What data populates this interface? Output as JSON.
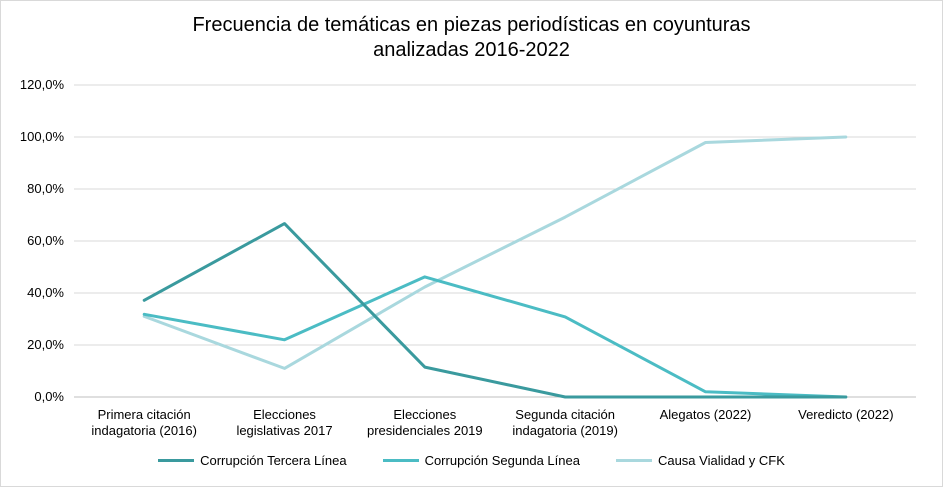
{
  "chart_data": {
    "type": "line",
    "title_lines": [
      "Frecuencia de temáticas en piezas periodísticas en coyunturas",
      "analizadas 2016-2022"
    ],
    "categories": [
      [
        "Primera citación",
        "indagatoria (2016)"
      ],
      [
        "Elecciones",
        "legislativas 2017"
      ],
      [
        "Elecciones",
        "presidenciales 2019"
      ],
      [
        "Segunda citación",
        "indagatoria (2019)"
      ],
      [
        "Alegatos (2022)"
      ],
      [
        "Veredicto (2022)"
      ]
    ],
    "y_ticks": [
      "0,0%",
      "20,0%",
      "40,0%",
      "60,0%",
      "80,0%",
      "100,0%",
      "120,0%"
    ],
    "ylim": [
      0,
      120
    ],
    "grid": true,
    "legend_position": "bottom",
    "series": [
      {
        "name": "Corrupción Tercera Línea",
        "color": "#3a9a9e",
        "values": [
          37.2,
          66.7,
          11.5,
          0.0,
          0.0,
          0.0
        ]
      },
      {
        "name": "Corrupción Segunda Línea",
        "color": "#4bbcc4",
        "values": [
          31.8,
          22.0,
          46.2,
          30.8,
          2.0,
          0.0
        ]
      },
      {
        "name": "Causa Vialidad y CFK",
        "color": "#a9d8de",
        "values": [
          31.0,
          11.0,
          42.3,
          69.2,
          97.9,
          100.0
        ]
      }
    ]
  }
}
